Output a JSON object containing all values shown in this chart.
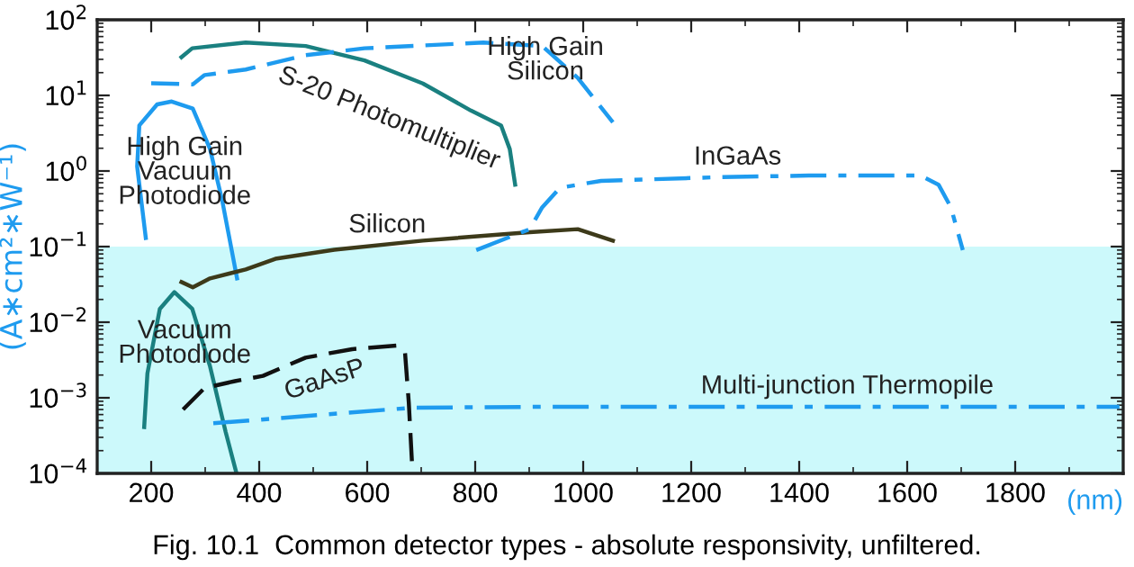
{
  "chart_data": {
    "type": "line",
    "title": "Fig. 10.1  Common detector types - absolute responsivity, unfiltered.",
    "xlabel": "(nm)",
    "ylabel": "(A∗cm²∗W⁻¹)",
    "log": "y",
    "grid": false,
    "legend": false,
    "xlim": [
      100,
      2000
    ],
    "xticks": [
      200,
      400,
      600,
      800,
      1000,
      1200,
      1400,
      1600,
      1800
    ],
    "ylim": [
      0.0001,
      100
    ],
    "yticks": [
      {
        "value": 0.0001,
        "label": "10$^{−4}$"
      },
      {
        "value": 0.001,
        "label": "10$^{−3}$"
      },
      {
        "value": 0.01,
        "label": "10$^{−2}$"
      },
      {
        "value": 0.1,
        "label": "10$^{−1}$"
      },
      {
        "value": 1,
        "label": "10$^{0}$"
      },
      {
        "value": 10,
        "label": "10$^{1}$"
      },
      {
        "value": 100,
        "label": "10$^{2}$"
      }
    ],
    "bands": [
      {
        "axis": "y",
        "from": 0.0001,
        "to": 0.1,
        "color": "#ccf9fb"
      }
    ],
    "series": [
      {
        "name": "S-20 Photomultiplier",
        "color": "#1a8080",
        "line_style": "solid",
        "x": [
          256,
          276,
          375,
          486,
          595,
          703,
          792,
          848,
          864,
          874
        ],
        "values": [
          32,
          42,
          50,
          45,
          29,
          14.4,
          6.3,
          4,
          1.95,
          0.66
        ]
      },
      {
        "name": "High Gain Silicon",
        "color": "#1e9bef",
        "line_style": "dashed",
        "x": [
          200,
          277,
          299,
          375,
          486,
          595,
          815,
          924,
          990,
          1055
        ],
        "values": [
          14.5,
          14,
          18.6,
          22,
          34,
          42,
          50,
          45,
          17,
          4.4
        ]
      },
      {
        "name": "High Gain Vacuum Photodiode",
        "color": "#1e9bef",
        "line_style": "solid",
        "x": [
          190,
          174,
          178,
          211,
          238,
          277,
          309,
          332,
          359
        ],
        "values": [
          0.13,
          1.15,
          4,
          7.6,
          8.3,
          6.7,
          1.95,
          0.39,
          0.038
        ]
      },
      {
        "name": "Silicon",
        "color": "#3d3a1a",
        "line_style": "solid",
        "x": [
          256,
          277,
          309,
          375,
          430,
          539,
          703,
          901,
          990,
          1055
        ],
        "values": [
          0.034,
          0.029,
          0.038,
          0.05,
          0.069,
          0.091,
          0.12,
          0.155,
          0.17,
          0.12
        ]
      },
      {
        "name": "InGaAs",
        "color": "#1e9bef",
        "line_style": "dashdot",
        "x": [
          802,
          901,
          924,
          957,
          1033,
          1253,
          1418,
          1625,
          1658,
          1681,
          1703
        ],
        "values": [
          0.09,
          0.17,
          0.33,
          0.6,
          0.74,
          0.83,
          0.87,
          0.87,
          0.66,
          0.33,
          0.09
        ]
      },
      {
        "name": "Vacuum Photodiode",
        "color": "#1a8080",
        "line_style": "solid",
        "x": [
          187,
          193,
          216,
          243,
          276,
          309,
          338,
          358
        ],
        "values": [
          0.00041,
          0.0021,
          0.015,
          0.025,
          0.015,
          0.0026,
          0.00035,
          0.0001
        ]
      },
      {
        "name": "GaAsP",
        "color": "#111111",
        "line_style": "dashed",
        "x": [
          259,
          299,
          355,
          407,
          486,
          572,
          654,
          670,
          677,
          684
        ],
        "values": [
          0.0007,
          0.00135,
          0.00166,
          0.00195,
          0.0034,
          0.0044,
          0.0049,
          0.004,
          0.00087,
          0.0001
        ]
      },
      {
        "name": "Multi-junction Thermopile",
        "color": "#1e9bef",
        "line_style": "dashdot",
        "x": [
          315,
          684,
          924,
          1993
        ],
        "values": [
          0.00046,
          0.00074,
          0.00076,
          0.00076
        ]
      }
    ]
  }
}
